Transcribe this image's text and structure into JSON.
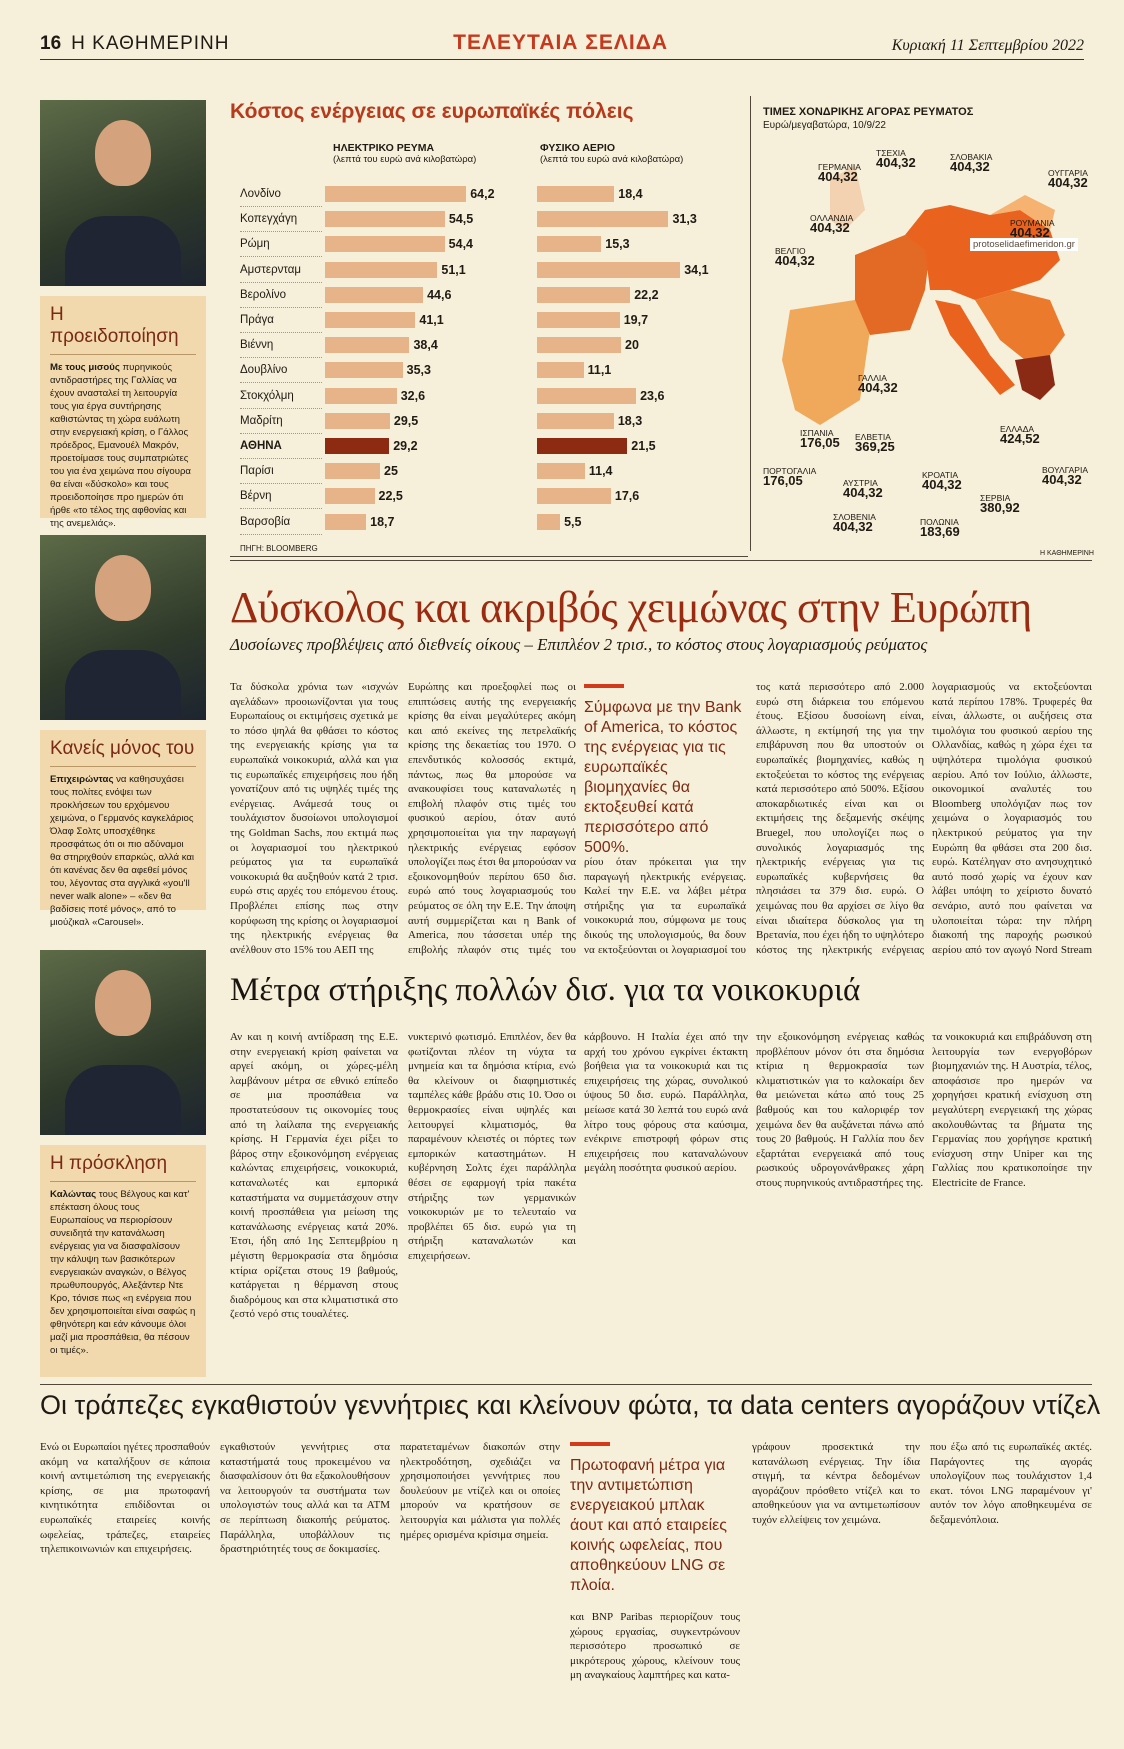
{
  "header": {
    "page_number": "16",
    "paper": "Η ΚΑΘΗΜΕΡΙΝΗ",
    "section": "ΤΕΛΕΥΤΑΙΑ ΣΕΛΙΔΑ",
    "date": "Κυριακή 11 Σεπτεμβρίου 2022"
  },
  "sidebar": {
    "box1": {
      "title": "Η προειδοποίηση",
      "lead": "Με τους μισούς",
      "text": "πυρηνικούς αντιδραστήρες της Γαλλίας να έχουν ανασταλεί τη λειτουργία τους για έργα συντήρησης καθιστώντας τη χώρα ευάλωτη στην ενεργειακή κρίση, ο Γάλλος πρόεδρος, Εμανουέλ Μακρόν, προετοίμασε τους συμπατριώτες του για ένα χειμώνα που σίγουρα θα είναι «δύσκολο» και τους προειδοποίησε προ ημερών ότι ήρθε «το τέλος της αφθονίας και της ανεμελιάς»."
    },
    "box2": {
      "title": "Κανείς μόνος του",
      "lead": "Επιχειρώντας",
      "text": "να καθησυχάσει τους πολίτες ενόψει των προκλήσεων του ερχόμενου χειμώνα, ο Γερμανός καγκελάριος Όλαφ Σολτς υποσχέθηκε προσφάτως ότι οι πιο αδύναμοι θα στηριχθούν επαρκώς, αλλά και ότι κανένας δεν θα αφεθεί μόνος του, λέγοντας στα αγγλικά «you'll never walk alone» – «δεν θα βαδίσεις ποτέ μόνος», από το μιούζικαλ «Carousel»."
    },
    "box3": {
      "title": "Η πρόσκληση",
      "lead": "Καλώντας",
      "text": "τους Βέλγους και κατ' επέκταση όλους τους Ευρωπαίους να περιορίσουν συνειδητά την κατανάλωση ενέργειας για να διασφαλίσουν την κάλυψη των βασικότερων ενεργειακών αναγκών, ο Βέλγος πρωθυπουργός, Αλεξάντερ Ντε Κρο, τόνισε πως «η ενέργεια που δεν χρησιμοποιείται είναι σαφώς η φθηνότερη και εάν κάνουμε όλοι μαζί μια προσπάθεια, θα πέσουν οι τιμές»."
    }
  },
  "chart_data": {
    "type": "bar",
    "title": "Κόστος ενέργειας σε ευρωπαϊκές πόλεις",
    "categories": [
      "Λονδίνο",
      "Κοπεγχάγη",
      "Ρώμη",
      "Αμστερνταμ",
      "Βερολίνο",
      "Πράγα",
      "Βιέννη",
      "Δουβλίνο",
      "Στοκχόλμη",
      "Μαδρίτη",
      "ΑΘΗΝΑ",
      "Παρίσι",
      "Βέρνη",
      "Βαρσοβία"
    ],
    "series": [
      {
        "name": "ΗΛΕΚΤΡΙΚΟ ΡΕΥΜΑ",
        "unit": "(λεπτά του ευρώ ανά κιλοβατώρα)",
        "values": [
          64.2,
          54.5,
          54.4,
          51.1,
          44.6,
          41.1,
          38.4,
          35.3,
          32.6,
          29.5,
          29.2,
          25,
          22.5,
          18.7
        ],
        "labels": [
          "64,2",
          "54,5",
          "54,4",
          "51,1",
          "44,6",
          "41,1",
          "38,4",
          "35,3",
          "32,6",
          "29,5",
          "29,2",
          "25",
          "22,5",
          "18,7"
        ]
      },
      {
        "name": "ΦΥΣΙΚΟ ΑΕΡΙΟ",
        "unit": "(λεπτά του ευρώ ανά κιλοβατώρα)",
        "values": [
          18.4,
          31.3,
          15.3,
          34.1,
          22.2,
          19.7,
          20,
          11.1,
          23.6,
          18.3,
          21.5,
          11.4,
          17.6,
          5.5
        ],
        "labels": [
          "18,4",
          "31,3",
          "15,3",
          "34,1",
          "22,2",
          "19,7",
          "20",
          "11,1",
          "23,6",
          "18,3",
          "21,5",
          "11,4",
          "17,6",
          "5,5"
        ]
      }
    ],
    "highlight": "ΑΘΗΝΑ",
    "source": "ΠΗΓΗ: BLOOMBERG",
    "colors": {
      "bar": "#e7b489",
      "highlight": "#8c2a12"
    }
  },
  "map": {
    "title": "ΤΙΜΕΣ ΧΟΝΔΡΙΚΗΣ ΑΓΟΡΑΣ ΡΕΥΜΑΤΟΣ",
    "subtitle": "Ευρώ/μεγαβατώρα, 10/9/22",
    "labels": [
      {
        "name": "ΓΕΡΜΑΝΙΑ",
        "value": "404,32"
      },
      {
        "name": "ΤΣΕΧΙΑ",
        "value": "404,32"
      },
      {
        "name": "ΣΛΟΒΑΚΙΑ",
        "value": "404,32"
      },
      {
        "name": "ΟΥΓΓΑΡΙΑ",
        "value": "404,32"
      },
      {
        "name": "ΟΛΛΑΝΔΙΑ",
        "value": "404,32"
      },
      {
        "name": "ΒΕΛΓΙΟ",
        "value": "404,32"
      },
      {
        "name": "ΡΟΥΜΑΝΙΑ",
        "value": "404,32"
      },
      {
        "name": "ΓΑΛΛΙΑ",
        "value": "404,32"
      },
      {
        "name": "ΙΣΠΑΝΙΑ",
        "value": "176,05"
      },
      {
        "name": "ΕΛΒΕΤΙΑ",
        "value": "369,25"
      },
      {
        "name": "ΕΛΛΑΔΑ",
        "value": "424,52"
      },
      {
        "name": "ΠΟΡΤΟΓΑΛΙΑ",
        "value": "176,05"
      },
      {
        "name": "ΑΥΣΤΡΙΑ",
        "value": "404,32"
      },
      {
        "name": "ΚΡΟΑΤΙΑ",
        "value": "404,32"
      },
      {
        "name": "ΒΟΥΛΓΑΡΙΑ",
        "value": "404,32"
      },
      {
        "name": "ΣΕΡΒΙΑ",
        "value": "380,92"
      },
      {
        "name": "ΣΛΟΒΕΝΙΑ",
        "value": "404,32"
      },
      {
        "name": "ΠΟΛΩΝΙΑ",
        "value": "183,69"
      }
    ],
    "credit": "Η ΚΑΘΗΜΕΡΙΝΗ",
    "watermark": "protoselidaefimeridon.gr"
  },
  "article1": {
    "headline": "Δύσκολος και ακριβός χειμώνας στην Ευρώπη",
    "subhead": "Δυσοίωνες προβλέψεις από διεθνείς οίκους – Επιπλέον 2 τρισ., το κόστος στους λογαριασμούς ρεύματος",
    "pull": "Σύμφωνα με την Bank of America, το κόστος της ενέργειας για τις ευρωπαϊκές βιομηχανίες θα εκτοξευθεί κατά περισσότερο από 500%.",
    "col1": "Τα δύσκολα χρόνια των «ισχνών αγελάδων» προοιωνίζονται για τους Ευρωπαίους οι εκτιμήσεις σχετικά με το πόσο ψηλά θα φθάσει το κόστος της ενεργειακής κρίσης για τα ευρωπαϊκά νοικοκυριά, αλλά και για τις ευρωπαϊκές επιχειρήσεις που ήδη γονατίζουν από τις υψηλές τιμές της ενέργειας. Ανάμεσά τους οι τουλάχιστον δυσοίωνοι υπολογισμοί της Goldman Sachs, που εκτιμά πως οι λογαριασμοί του ηλεκτρικού ρεύματος για τα ευρωπαϊκά νοικοκυριά θα αυξηθούν κατά 2 τρισ. ευρώ στις αρχές του επόμενου έτους. Προβλέπει επίσης πως στην κορύφωση της κρίσης οι λογαριασμοί της ηλεκτρικής ενέργειας θα ανέλθουν στο 15% του ΑΕΠ της",
    "col2": "Ευρώπης και προεξοφλεί πως οι επιπτώσεις αυτής της ενεργειακής κρίσης θα είναι μεγαλύτερες ακόμη και από εκείνες της πετρελαϊκής κρίσης της δεκαετίας του 1970. Ο επενδυτικός κολοσσός εκτιμά, πάντως, πως θα μπορούσε να ανακουφίσει τους καταναλωτές η επιβολή πλαφόν στις τιμές του φυσικού αερίου, όταν αυτό χρησιμοποιείται για την παραγωγή ηλεκτρικής ενέργειας εφόσον υπολογίζει πως έτσι θα μπορούσαν να εξοικονομηθούν περίπου 650 δισ. ευρώ από τους λογαριασμούς του ρεύματος σε όλη την Ε.Ε. Την άποψη αυτή συμμερίζεται και η Bank of America, που τάσσεται υπέρ της επιβολής πλαφόν στις τιμές του φυσικού αε-",
    "col3": "ρίου όταν πρόκειται για την παραγωγή ηλεκτρικής ενέργειας. Καλεί την Ε.Ε. να λάβει μέτρα στήριξης για τα ευρωπαϊκά νοικοκυριά που, σύμφωνα με τους δικούς της υπολογισμούς, θα δουν να εκτοξεύονται οι λογαριασμοί του ηλεκτρικού ρεύμα-",
    "col4": "τος κατά περισσότερο από 2.000 ευρώ στη διάρκεια του επόμενου έτους. Εξίσου δυσοίωνη είναι, άλλωστε, η εκτίμησή της για την επιβάρυνση που θα υποστούν οι ευρωπαϊκές βιομηχανίες, καθώς η εκτοξεύεται το κόστος της ενέργειας κατά περισσότερο από 500%. Εξίσου αποκαρδιωτικές είναι και οι εκτιμήσεις της δεξαμενής σκέψης Bruegel, που υπολογίζει πως ο συνολικός λογαριασμός της ηλεκτρικής ενέργειας για τις ευρωπαϊκές κυβερνήσεις θα πλησιάσει τα 379 δισ. ευρώ. Ο χειμώνας που θα αρχίσει σε λίγο θα είναι ιδιαίτερα δύσκολος για τη Βρετανία, που έχει ήδη το υψηλότερο κόστος της ηλεκτρικής ενέργειας στην Ευρώπη και θα δει τους",
    "col5": "λογαριασμούς να εκτοξεύονται κατά περίπου 178%. Τρυφερές θα είναι, άλλωστε, οι αυξήσεις στα τιμολόγια του φυσικού αερίου της Ολλανδίας, καθώς η χώρα έχει τα υψηλότερα τιμολόγια φυσικού αερίου. Από τον Ιούλιο, άλλωστε, οικονομικοί αναλυτές του Bloomberg υπολόγιζαν πως τον χειμώνα ο λογαριασμός του ηλεκτρικού ρεύματος για την Ευρώπη θα φθάσει στα 200 δισ. ευρώ. Κατέληγαν στο ανησυχητικό αυτό ποσό χωρίς να έχουν καν λάβει υπόψη το χείριστο δυνατό σενάριο, αυτό που φαίνεται να υλοποιείται τώρα: την πλήρη διακοπή της παροχής ρωσικού αερίου από τον αγωγό Nord Stream 1."
  },
  "article2": {
    "headline": "Μέτρα στήριξης πολλών δισ. για τα νοικοκυριά",
    "col1": "Αν και η κοινή αντίδραση της Ε.Ε. στην ενεργειακή κρίση φαίνεται να αργεί ακόμη, οι χώρες-μέλη λαμβάνουν μέτρα σε εθνικό επίπεδο σε μια προσπάθεια να προστατεύσουν τις οικονομίες τους από τη λαίλαπα της ενεργειακής κρίσης. Η Γερμανία έχει ρίξει το βάρος στην εξοικονόμηση ενέργειας καλώντας επιχειρήσεις, νοικοκυριά, καταναλωτές και εμπορικά καταστήματα να συμμετάσχουν στην κοινή προσπάθεια για μείωση της κατανάλωσης ενέργειας κατά 20%. Έτσι, ήδη από 1ης Σεπτεμβρίου η μέγιστη θερμοκρασία στα δημόσια κτίρια ορίζεται στους 19 βαθμούς, κατάργεται η θέρμανση στους διαδρόμους και στα κλιματιστικά στο ζεστό νερό στις τουαλέτες.",
    "col2": "νυκτερινό φωτισμό. Επιπλέον, δεν θα φωτίζονται πλέον τη νύχτα τα μνημεία και τα δημόσια κτίρια, ενώ θα κλείνουν οι διαφημιστικές ταμπέλες κάθε βράδυ στις 10. Όσο οι θερμοκρασίες είναι υψηλές και λειτουργεί κλιματισμός, θα παραμένουν κλειστές οι πόρτες των εμπορικών καταστημάτων. Η κυβέρνηση Σολτς έχει παράλληλα θέσει σε εφαρμογή τρία πακέτα στήριξης των γερμανικών νοικοκυριών με το τελευταίο να προβλέπει 65 δισ. ευρώ για τη στήριξη καταναλωτών και επιχειρήσεων.",
    "col3": "κάρβουνο. Η Ιταλία έχει από την αρχή του χρόνου εγκρίνει έκτακτη βοήθεια για τα νοικοκυριά και τις επιχειρήσεις της χώρας, συνολικού ύψους 50 δισ. ευρώ. Παράλληλα, μείωσε κατά 30 λεπτά του ευρώ ανά λίτρο τους φόρους στα καύσιμα, ενέκρινε επιστροφή φόρων στις επιχειρήσεις που καταναλώνουν μεγάλη ποσότητα φυσικού αερίου.",
    "col4": "την εξοικονόμηση ενέργειας καθώς προβλέπουν μόνον ότι στα δημόσια κτίρια η θερμοκρασία των κλιματιστικών για το καλοκαίρι δεν θα μειώνεται κάτω από τους 25 βαθμούς και του καλοριφέρ τον χειμώνα δεν θα αυξάνεται πάνω από τους 20 βαθμούς. Η Γαλλία που δεν εξαρτάται ενεργειακά από τους ρωσικούς υδρογονάνθρακες χάρη στους πυρηνικούς αντιδραστήρες της.",
    "col5": "τα νοικοκυριά και επιβράδυνση στη λειτουργία των ενεργοβόρων βιομηχανιών της. Η Αυστρία, τέλος, αποφάσισε προ ημερών να χορηγήσει κρατική ενίσχυση στη μεγαλύτερη ενεργειακή της χώρας ακολουθώντας τα βήματα της Γερμανίας που χορήγησε κρατική ενίσχυση στην Uniper και της Γαλλίας που κρατικοποίησε την Electricite de France."
  },
  "article3": {
    "headline": "Οι τράπεζες εγκαθιστούν γεννήτριες και κλείνουν φώτα, τα data centers αγοράζουν ντίζελ",
    "pull": "Πρωτοφανή μέτρα για την αντιμετώπιση ενεργειακού μπλακ άουτ και από εταιρείες κοινής ωφελείας, που αποθηκεύουν LNG σε πλοία.",
    "col1": "Ενώ οι Ευρωπαίοι ηγέτες προσπαθούν ακόμη να καταλήξουν σε κάποια κοινή αντιμετώπιση της ενεργειακής κρίσης, σε μια πρωτοφανή κινητικότητα επιδίδονται οι ευρωπαϊκές εταιρείες κοινής ωφελείας, τράπεζες, εταιρείες τηλεπικοινωνιών και επιχειρήσεις.",
    "col2": "εγκαθιστούν γεννήτριες στα καταστήματά τους προκειμένου να διασφαλίσουν ότι θα εξακολουθήσουν να λειτουργούν τα συστήματα των υπολογιστών τους αλλά και τα ΑΤΜ σε περίπτωση διακοπής ρεύματος. Παράλληλα, υποβάλλουν τις δραστηριότητές τους σε δοκιμασίες.",
    "col3": "παρατεταμένων διακοπών στην ηλεκτροδότηση, σχεδιάζει να χρησιμοποιήσει γεννήτριες που δουλεύουν με ντίζελ και οι οποίες μπορούν να κρατήσουν σε λειτουργία και μάλιστα για πολλές ημέρες ορισμένα κρίσιμα σημεία.",
    "col3b": "και BNP Paribas περιορίζουν τους χώρους εργασίας, συγκεντρώνουν περισσότερο προσωπικό σε μικρότερους χώρους, κλείνουν τους μη αναγκαίους λαμπτήρες και κατα-",
    "col4": "γράφουν προσεκτικά την κατανάλωση ενέργειας. Την ίδια στιγμή, τα κέντρα δεδομένων αγοράζουν πρόσθετο ντίζελ και το αποθηκεύουν για να αντιμετωπίσουν τυχόν ελλείψεις τον χειμώνα.",
    "col5": "που έξω από τις ευρωπαϊκές ακτές. Παράγοντες της αγοράς υπολογίζουν πως τουλάχιστον 1,4 εκατ. τόνοι LNG παραμένουν γι' αυτόν τον λόγο αποθηκευμένα σε δεξαμενόπλοια."
  }
}
